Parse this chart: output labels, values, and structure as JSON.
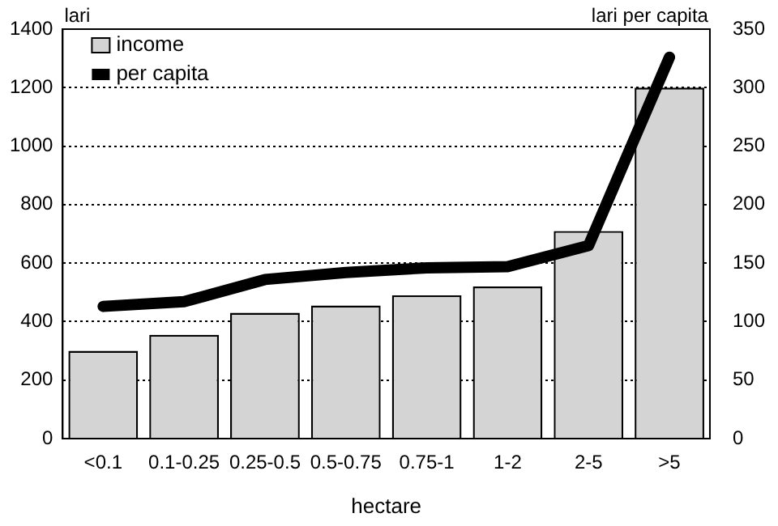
{
  "chart_data": {
    "type": "bar",
    "xlabel": "hectare",
    "ylabel": "lari",
    "y2label": "lari per capita",
    "categories": [
      "<0.1",
      "0.1-0.25",
      "0.25-0.5",
      "0.5-0.75",
      "0.75-1",
      "1-2",
      "2-5",
      ">5"
    ],
    "series": [
      {
        "name": "income",
        "color": "#d4d4d4",
        "values": [
          300,
          355,
          430,
          455,
          490,
          520,
          710,
          1200
        ]
      },
      {
        "name": "per capita",
        "type": "line",
        "axis": "y2",
        "color": "#000000",
        "values": [
          113,
          117,
          136,
          142,
          146,
          147,
          165,
          326
        ]
      }
    ],
    "ylim": [
      0,
      1400
    ],
    "yticks": [
      0,
      200,
      400,
      600,
      800,
      1000,
      1200,
      1400
    ],
    "y2lim": [
      0,
      350
    ],
    "y2ticks": [
      0,
      50,
      100,
      150,
      200,
      250,
      300,
      350
    ],
    "grid": "y",
    "legend": "top left",
    "marker": "none",
    "line_style": "solid"
  }
}
